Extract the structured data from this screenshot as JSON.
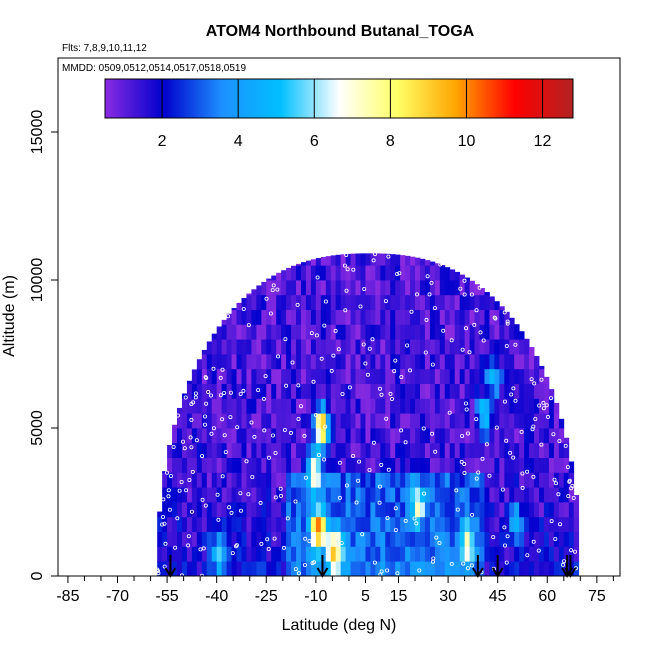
{
  "chart_data": {
    "type": "heatmap",
    "title": "ATOM4 Northbound Butanal_TOGA",
    "subtitle_flights": "Flts: 7,8,9,10,11,12",
    "subtitle_dates": "MMDD: 0509,0512,0514,0517,0518,0519",
    "xlabel": "Latitude (deg N)",
    "ylabel": "Altitude (m)",
    "xlim": [
      -88,
      82
    ],
    "ylim": [
      0,
      17500
    ],
    "x_tick_labels": [
      "-85",
      "-70",
      "-55",
      "-40",
      "-25",
      "-10",
      "5",
      "15",
      "30",
      "45",
      "60",
      "75"
    ],
    "x_tick_values": [
      -85,
      -70,
      -55,
      -40,
      -25,
      -10,
      5,
      15,
      30,
      45,
      60,
      75
    ],
    "x_minor_tick_step": 5,
    "y_tick_labels": [
      "0",
      "5000",
      "10000",
      "15000"
    ],
    "y_tick_values": [
      0,
      5000,
      10000,
      15000
    ],
    "colorbar": {
      "range": [
        0.5,
        12.8
      ],
      "tick_labels": [
        "2",
        "4",
        "6",
        "8",
        "10",
        "12"
      ],
      "tick_values": [
        2,
        4,
        6,
        8,
        10,
        12
      ],
      "colors": [
        "#8a2be2",
        "#0000cd",
        "#1e90ff",
        "#00bfff",
        "#ffffff",
        "#ffff66",
        "#ffa500",
        "#ff0000",
        "#b22222"
      ]
    },
    "field_extent": {
      "lat_min": -58,
      "lat_max": 70,
      "alt_max": 10900,
      "lat_bin_deg": 1.5,
      "alt_bin_m": 500
    },
    "hotspots": [
      {
        "lat": -9,
        "alt": 4800,
        "value": 9.5
      },
      {
        "lat": -10,
        "alt": 1400,
        "value": 9.0
      },
      {
        "lat": -5,
        "alt": 600,
        "value": 7.5
      },
      {
        "lat": -11,
        "alt": 3300,
        "value": 7.5
      },
      {
        "lat": 40,
        "alt": 5200,
        "value": 5.5
      },
      {
        "lat": 43,
        "alt": 6500,
        "value": 5.0
      },
      {
        "lat": 20,
        "alt": 2200,
        "value": 6.0
      },
      {
        "lat": -40,
        "alt": 500,
        "value": 5.5
      },
      {
        "lat": 35,
        "alt": 900,
        "value": 6.0
      },
      {
        "lat": 50,
        "alt": 1500,
        "value": 5.0
      }
    ],
    "arrow_lats": [
      -54,
      -8,
      39,
      45,
      66,
      67
    ],
    "arrow_color": "#000000",
    "sample_point_color": "#ffffff"
  }
}
